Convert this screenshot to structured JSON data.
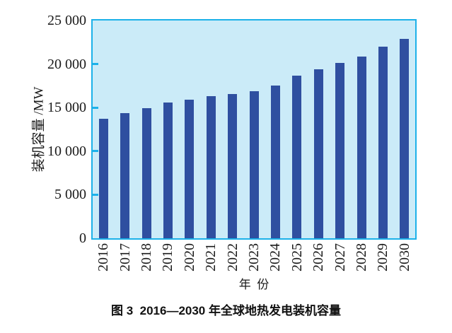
{
  "figure": {
    "caption": "图 3  2016—2030 年全球地热发电装机容量"
  },
  "colors": {
    "bar": "#2F4FA0",
    "plot_background": "#CBEBF8",
    "axis": "#1CB1E9",
    "text": "#1A1A1A"
  },
  "chart_data": {
    "type": "bar",
    "title": "",
    "xlabel": "年  份",
    "ylabel": "装机容量 /MW",
    "categories": [
      "2016",
      "2017",
      "2018",
      "2019",
      "2020",
      "2021",
      "2022",
      "2023",
      "2024",
      "2025",
      "2026",
      "2027",
      "2028",
      "2029",
      "2030"
    ],
    "values": [
      13700,
      14400,
      14900,
      15600,
      15900,
      16300,
      16600,
      16900,
      17500,
      18700,
      19400,
      20100,
      20900,
      22000,
      22900
    ],
    "ylim": [
      0,
      25000
    ],
    "yticks": [
      0,
      5000,
      10000,
      15000,
      20000,
      25000
    ],
    "ytick_labels": [
      "0",
      "5 000",
      "10 000",
      "15 000",
      "20 000",
      "25 000"
    ],
    "grid": false,
    "legend_position": "none",
    "x_tick_rotation_deg": -90
  }
}
